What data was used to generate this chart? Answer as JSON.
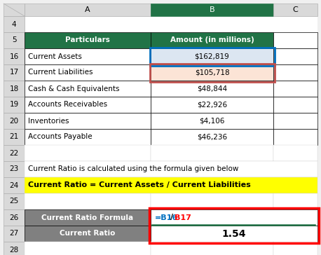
{
  "fig_bg": "#f0f0f0",
  "spreadsheet_bg": "#ffffff",
  "col_header_bg_gray": "#d9d9d9",
  "col_header_bg_green": "#217346",
  "col_header_text_white": "#ffffff",
  "col_header_text_black": "#000000",
  "green_header_bg": "#217346",
  "green_header_text": "#ffffff",
  "gray_cell_bg": "#808080",
  "gray_cell_text": "#ffffff",
  "blue_cell_bg": "#dce6f1",
  "pink_cell_bg": "#fce4d6",
  "white_cell_bg": "#ffffff",
  "yellow_bg": "#ffff00",
  "black_text": "#000000",
  "red_border": "#ff0000",
  "blue_border": "#0070c0",
  "dark_red_border": "#c0504d",
  "green_line": "#217346",
  "row_labels": [
    "4",
    "5",
    "16",
    "17",
    "18",
    "19",
    "20",
    "21",
    "22",
    "23",
    "24",
    "25",
    "26",
    "27",
    "28"
  ],
  "table_data": [
    {
      "row": "5",
      "A": "Particulars",
      "B": "Amount (in millions)",
      "A_bg": "#217346",
      "B_bg": "#217346",
      "A_fg": "#ffffff",
      "B_fg": "#ffffff",
      "A_bold": true,
      "B_bold": true,
      "A_ha": "center",
      "B_ha": "center"
    },
    {
      "row": "16",
      "A": "Current Assets",
      "B": "$162,819",
      "A_bg": "#ffffff",
      "B_bg": "#dce6f1",
      "A_fg": "#000000",
      "B_fg": "#000000",
      "A_bold": false,
      "B_bold": false,
      "A_ha": "left",
      "B_ha": "center"
    },
    {
      "row": "17",
      "A": "Current Liabilities",
      "B": "$105,718",
      "A_bg": "#ffffff",
      "B_bg": "#fce4d6",
      "A_fg": "#000000",
      "B_fg": "#000000",
      "A_bold": false,
      "B_bold": false,
      "A_ha": "left",
      "B_ha": "center"
    },
    {
      "row": "18",
      "A": "Cash & Cash Equivalents",
      "B": "$48,844",
      "A_bg": "#ffffff",
      "B_bg": "#ffffff",
      "A_fg": "#000000",
      "B_fg": "#000000",
      "A_bold": false,
      "B_bold": false,
      "A_ha": "left",
      "B_ha": "center"
    },
    {
      "row": "19",
      "A": "Accounts Receivables",
      "B": "$22,926",
      "A_bg": "#ffffff",
      "B_bg": "#ffffff",
      "A_fg": "#000000",
      "B_fg": "#000000",
      "A_bold": false,
      "B_bold": false,
      "A_ha": "left",
      "B_ha": "center"
    },
    {
      "row": "20",
      "A": "Inventories",
      "B": "$4,106",
      "A_bg": "#ffffff",
      "B_bg": "#ffffff",
      "A_fg": "#000000",
      "B_fg": "#000000",
      "A_bold": false,
      "B_bold": false,
      "A_ha": "left",
      "B_ha": "center"
    },
    {
      "row": "21",
      "A": "Accounts Payable",
      "B": "$46,236",
      "A_bg": "#ffffff",
      "B_bg": "#ffffff",
      "A_fg": "#000000",
      "B_fg": "#000000",
      "A_bold": false,
      "B_bold": false,
      "A_ha": "left",
      "B_ha": "center"
    }
  ],
  "formula_text": "Current Ratio is calculated using the formula given below",
  "formula_highlight": "Current Ratio = Current Assets / Current Liabilities",
  "formula_label": "Current Ratio Formula",
  "result_label": "Current Ratio",
  "result_value": "1.54",
  "b16_text": "=B16",
  "slash_text": "/",
  "b17_text": "B17",
  "b16_color": "#0070c0",
  "slash_color": "#000000",
  "b17_color": "#ff0000"
}
